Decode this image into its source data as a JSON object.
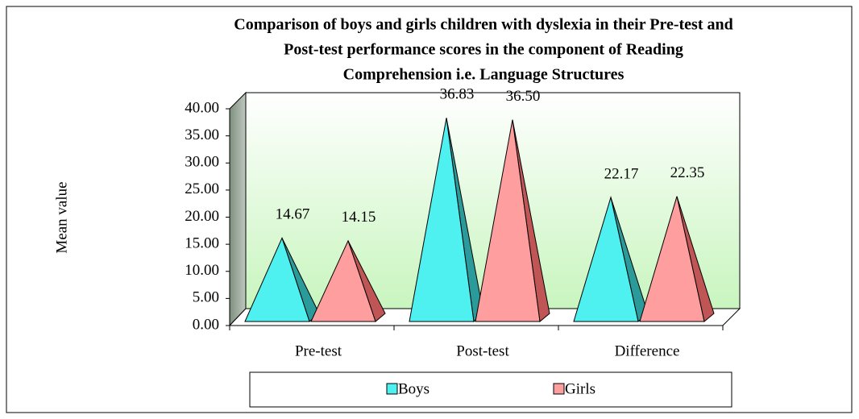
{
  "chart_data": {
    "type": "pyramid",
    "title": [
      "Comparison of boys and girls children with dyslexia in their Pre-test and",
      "Post-test performance scores in the component of Reading",
      "Comprehension i.e. Language Structures"
    ],
    "y_label": "Mean value",
    "categories": [
      "Pre-test",
      "Post-test",
      "Difference"
    ],
    "series": [
      {
        "name": "Boys",
        "color": "#4ff0f0",
        "side_color": "#2a9a9a",
        "values": [
          14.67,
          36.83,
          22.17
        ],
        "value_labels": [
          "14.67",
          "36.83",
          "22.17"
        ]
      },
      {
        "name": "Girls",
        "color": "#ff9e9e",
        "side_color": "#c05555",
        "values": [
          14.15,
          36.5,
          22.35
        ],
        "value_labels": [
          "14.15",
          "36.50",
          "22.35"
        ]
      }
    ],
    "ylim": [
      0,
      40
    ],
    "yticks": [
      {
        "value": 0,
        "label": "0.00"
      },
      {
        "value": 5,
        "label": "5.00"
      },
      {
        "value": 10,
        "label": "10.00"
      },
      {
        "value": 15,
        "label": "15.00"
      },
      {
        "value": 20,
        "label": "20.00"
      },
      {
        "value": 25,
        "label": "25.00"
      },
      {
        "value": 30,
        "label": "30.00"
      },
      {
        "value": 35,
        "label": "35.00"
      },
      {
        "value": 40,
        "label": "40.00"
      }
    ],
    "legend": "bottom"
  }
}
